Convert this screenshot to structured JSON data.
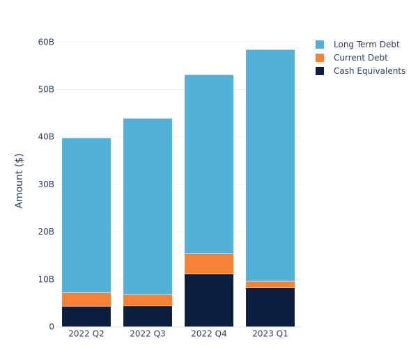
{
  "chart_data": {
    "type": "bar",
    "barmode": "stack",
    "title": "",
    "xlabel": "",
    "ylabel": "Amount ($)",
    "categories": [
      "2022 Q2",
      "2022 Q3",
      "2022 Q4",
      "2023 Q1"
    ],
    "series": [
      {
        "name": "Cash Equivalents",
        "color": "#0d1f3f",
        "values": [
          4.3,
          4.4,
          11.1,
          8.2
        ]
      },
      {
        "name": "Current Debt",
        "color": "#f58235",
        "values": [
          2.9,
          2.4,
          4.3,
          1.4
        ]
      },
      {
        "name": "Long Term Debt",
        "color": "#52b0d8",
        "values": [
          32.6,
          37.1,
          37.7,
          48.8
        ]
      }
    ],
    "yunit": "B",
    "ylim": [
      0,
      60
    ],
    "yticks": [
      0,
      10,
      20,
      30,
      40,
      50,
      60
    ],
    "ytick_labels": [
      "0",
      "10B",
      "20B",
      "30B",
      "40B",
      "50B",
      "60B"
    ],
    "grid": true,
    "legend": {
      "placement": "top-right",
      "entries": [
        "Long Term Debt",
        "Current Debt",
        "Cash Equivalents"
      ]
    }
  }
}
